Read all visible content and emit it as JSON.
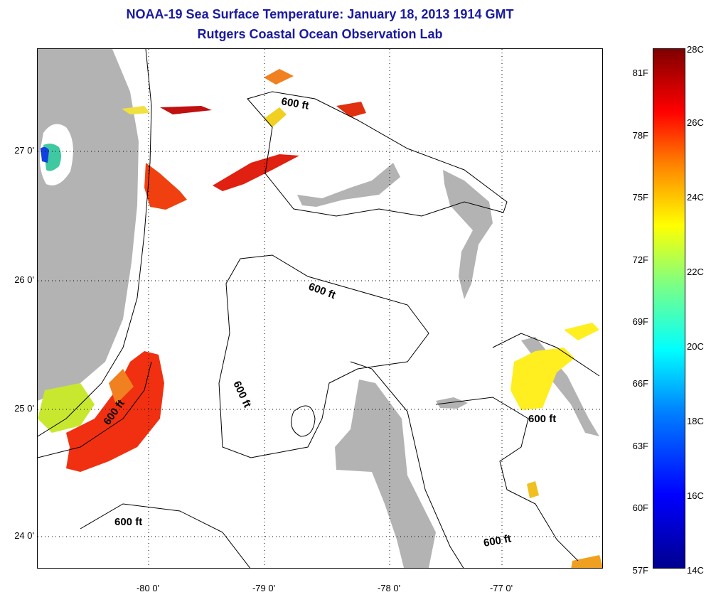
{
  "title": "NOAA-19 Sea Surface Temperature:  January 18, 2013 1914 GMT",
  "subtitle": "Rutgers Coastal Ocean Observation Lab",
  "map": {
    "lat_labels": [
      "27 0'",
      "26 0'",
      "25 0'",
      "24 0'"
    ],
    "lon_labels": [
      "-80 0'",
      "-79 0'",
      "-78 0'",
      "-77 0'"
    ],
    "contour_label": "600 ft",
    "colors": {
      "land": "#b3b3b3",
      "water": "#ffffff",
      "contour": "#000000"
    }
  },
  "colorbar": {
    "fahrenheit": [
      "81F",
      "78F",
      "75F",
      "72F",
      "69F",
      "66F",
      "63F",
      "60F",
      "57F"
    ],
    "celsius": [
      "28C",
      "26C",
      "24C",
      "22C",
      "20C",
      "18C",
      "16C",
      "14C"
    ]
  }
}
